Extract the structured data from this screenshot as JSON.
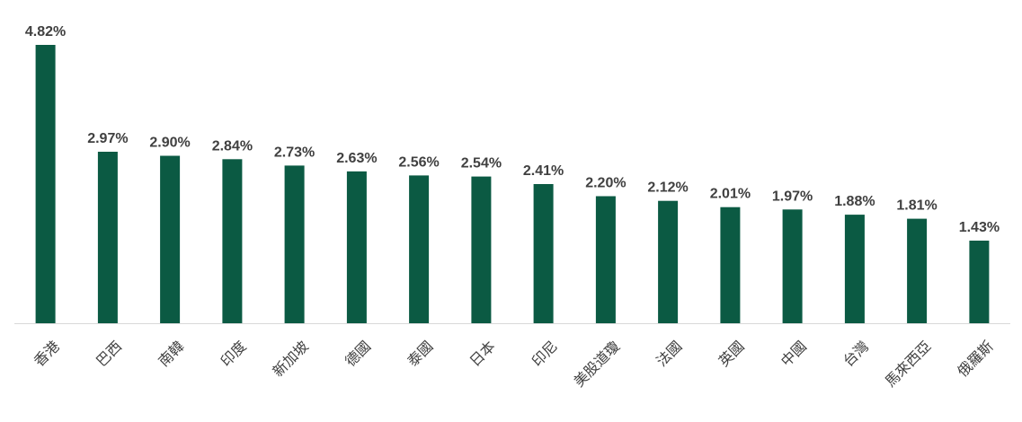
{
  "chart_data": {
    "type": "bar",
    "categories": [
      "香港",
      "巴西",
      "南韓",
      "印度",
      "新加坡",
      "德國",
      "泰國",
      "日本",
      "印尼",
      "美股道瓊",
      "法國",
      "英國",
      "中國",
      "台灣",
      "馬來西亞",
      "俄羅斯"
    ],
    "values": [
      4.82,
      2.97,
      2.9,
      2.84,
      2.73,
      2.63,
      2.56,
      2.54,
      2.41,
      2.2,
      2.12,
      2.01,
      1.97,
      1.88,
      1.81,
      1.43
    ],
    "data_labels": [
      "4.82%",
      "2.97%",
      "2.90%",
      "2.84%",
      "2.73%",
      "2.63%",
      "2.56%",
      "2.54%",
      "2.41%",
      "2.20%",
      "2.12%",
      "2.01%",
      "1.97%",
      "1.88%",
      "1.81%",
      "1.43%"
    ],
    "title": "",
    "xlabel": "",
    "ylabel": "",
    "ylim": [
      0,
      5
    ],
    "grid": false,
    "legend": "none",
    "bar_color": "#0b5a43"
  }
}
